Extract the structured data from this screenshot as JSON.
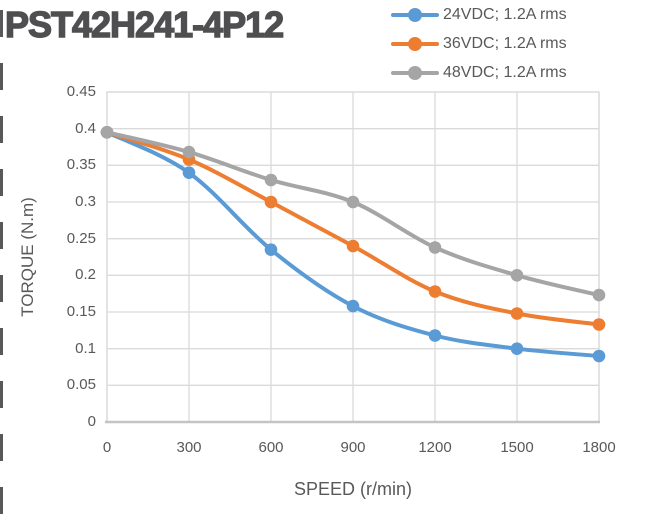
{
  "colors": {
    "grid": "#DADADA",
    "axis": "#C4C4C4",
    "tick_text": "#595959",
    "title_text": "#4F4F51",
    "series_blue": "#5B9BD5",
    "series_orange": "#ED7D31",
    "series_gray": "#A5A5A5"
  },
  "chart_data": {
    "type": "line",
    "title": "PST42H241-4P12",
    "xlabel": "SPEED (r/min)",
    "ylabel": "TORQUE (N.m)",
    "x": [
      0,
      300,
      600,
      900,
      1200,
      1500,
      1800
    ],
    "series": [
      {
        "name": "24VDC; 1.2A rms",
        "color": "#5B9BD5",
        "values": [
          0.395,
          0.34,
          0.235,
          0.158,
          0.118,
          0.1,
          0.09
        ]
      },
      {
        "name": "36VDC; 1.2A rms",
        "color": "#ED7D31",
        "values": [
          0.395,
          0.358,
          0.3,
          0.24,
          0.178,
          0.148,
          0.133
        ]
      },
      {
        "name": "48VDC; 1.2A rms",
        "color": "#A5A5A5",
        "values": [
          0.395,
          0.368,
          0.33,
          0.3,
          0.238,
          0.2,
          0.173
        ]
      }
    ],
    "xlim": [
      0,
      1800
    ],
    "ylim": [
      0,
      0.45
    ],
    "xticks": [
      0,
      300,
      600,
      900,
      1200,
      1500,
      1800
    ],
    "yticks": [
      0,
      0.05,
      0.1,
      0.15,
      0.2,
      0.25,
      0.3,
      0.35,
      0.4,
      0.45
    ],
    "grid": true,
    "smooth": true,
    "marker": "circle",
    "legend_position": "top-right"
  }
}
